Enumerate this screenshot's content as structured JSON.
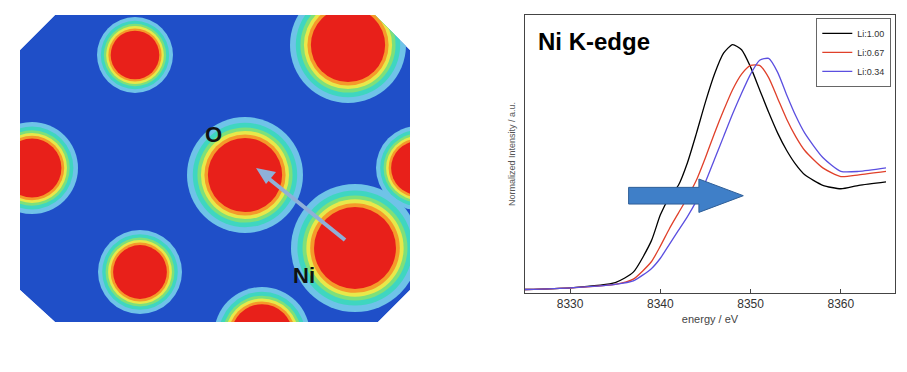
{
  "density_map": {
    "atom_labels": [
      "O",
      "Ni"
    ]
  },
  "chart_data": {
    "type": "line",
    "title": "Ni K-edge",
    "x_label": "energy / eV",
    "y_label": "Normalized Intensity / a.u.",
    "x": [
      8325,
      8330,
      8335,
      8337,
      8339,
      8340,
      8341,
      8342,
      8343,
      8344,
      8345,
      8346,
      8347,
      8348,
      8349,
      8350,
      8351,
      8352,
      8353,
      8354,
      8355,
      8356,
      8358,
      8360,
      8362,
      8365
    ],
    "series": [
      {
        "name": "Li:1.00",
        "color": "#000000",
        "values": [
          0.02,
          0.03,
          0.06,
          0.12,
          0.3,
          0.45,
          0.55,
          0.62,
          0.75,
          0.92,
          1.1,
          1.26,
          1.38,
          1.43,
          1.4,
          1.3,
          1.17,
          1.04,
          0.92,
          0.82,
          0.74,
          0.68,
          0.62,
          0.6,
          0.62,
          0.64
        ]
      },
      {
        "name": "Li:0.67",
        "color": "#e0402a",
        "values": [
          0.02,
          0.03,
          0.05,
          0.08,
          0.18,
          0.27,
          0.37,
          0.46,
          0.55,
          0.65,
          0.78,
          0.92,
          1.05,
          1.17,
          1.26,
          1.31,
          1.31,
          1.24,
          1.12,
          1.0,
          0.9,
          0.82,
          0.72,
          0.67,
          0.68,
          0.7
        ]
      },
      {
        "name": "Li:0.34",
        "color": "#5b4fe0",
        "values": [
          0.02,
          0.03,
          0.05,
          0.07,
          0.14,
          0.2,
          0.28,
          0.36,
          0.44,
          0.53,
          0.64,
          0.77,
          0.9,
          1.03,
          1.15,
          1.26,
          1.34,
          1.35,
          1.27,
          1.14,
          1.02,
          0.92,
          0.78,
          0.7,
          0.7,
          0.72
        ]
      }
    ],
    "xlim": [
      8325,
      8366
    ],
    "xticks": [
      8330,
      8340,
      8350,
      8360
    ],
    "ylim": [
      0,
      1.6
    ],
    "tick_labels": "x",
    "legend": "upper right",
    "grid": false
  }
}
